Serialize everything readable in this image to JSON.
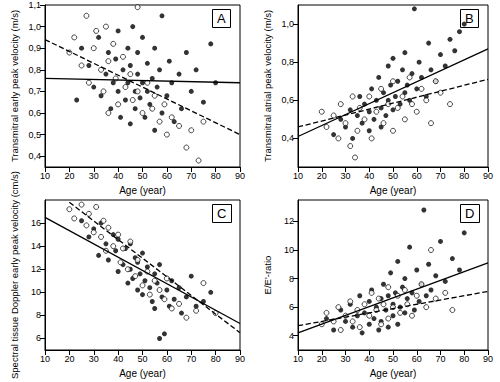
{
  "chart_data": [
    {
      "type": "scatter",
      "title": "A",
      "x_label": "Age (year)",
      "y_label": "Transmitral early peak velocity (m/s)",
      "xlim": [
        10,
        90
      ],
      "xticks": [
        10,
        20,
        30,
        40,
        50,
        60,
        70,
        80,
        90
      ],
      "ylim": [
        0.35,
        1.1
      ],
      "yticks": [
        {
          "value": 0.4,
          "label": "0,4"
        },
        {
          "value": 0.5,
          "label": "0,5"
        },
        {
          "value": 0.6,
          "label": "0,6"
        },
        {
          "value": 0.7,
          "label": "0,7"
        },
        {
          "value": 0.8,
          "label": "0,8"
        },
        {
          "value": 0.9,
          "label": "0,9"
        },
        {
          "value": 1.0,
          "label": "1,0"
        },
        {
          "value": 1.1,
          "label": "1,1"
        }
      ],
      "grid": false,
      "series": [
        {
          "type": "scatter",
          "marker": "filled",
          "color": "#000000",
          "x": [
            28,
            30,
            32,
            33,
            35,
            36,
            37,
            38,
            39,
            40,
            40,
            41,
            42,
            43,
            44,
            44,
            45,
            45,
            46,
            47,
            47,
            48,
            48,
            49,
            50,
            50,
            51,
            52,
            52,
            53,
            54,
            55,
            55,
            56,
            57,
            58,
            58,
            60,
            61,
            62,
            63,
            65,
            66,
            68,
            70,
            72,
            75,
            78,
            80,
            23,
            25
          ],
          "values": [
            0.82,
            0.72,
            0.95,
            0.68,
            0.78,
            0.88,
            0.62,
            0.74,
            0.85,
            0.7,
            0.98,
            0.58,
            0.8,
            0.66,
            0.9,
            0.74,
            0.55,
            0.82,
            1.0,
            0.7,
            0.62,
            0.78,
            0.88,
            0.67,
            0.74,
            0.95,
            0.58,
            0.83,
            0.7,
            0.64,
            0.76,
            0.9,
            0.52,
            0.72,
            0.8,
            0.6,
            1.05,
            0.68,
            0.84,
            0.74,
            0.56,
            0.78,
            0.62,
            0.88,
            0.7,
            0.8,
            0.65,
            0.92,
            0.74,
            0.66,
            0.9
          ]
        },
        {
          "type": "scatter",
          "marker": "open",
          "color": "#000000",
          "x": [
            20,
            22,
            25,
            27,
            28,
            30,
            31,
            33,
            34,
            35,
            36,
            38,
            39,
            40,
            42,
            43,
            45,
            46,
            48,
            50,
            52,
            54,
            55,
            57,
            59,
            60,
            62,
            65,
            68,
            70,
            73,
            75,
            48,
            36
          ],
          "values": [
            0.88,
            0.95,
            0.82,
            1.05,
            0.74,
            0.9,
            0.98,
            0.8,
            0.7,
            1.0,
            0.84,
            0.92,
            0.76,
            0.64,
            0.86,
            0.72,
            0.78,
            0.66,
            0.7,
            0.6,
            0.74,
            0.62,
            0.68,
            0.56,
            0.64,
            0.5,
            0.58,
            0.54,
            0.44,
            0.52,
            0.38,
            0.56,
            1.09,
            0.6
          ]
        },
        {
          "type": "line",
          "line_style": "solid",
          "color": "#000000",
          "x": [
            10,
            90
          ],
          "values": [
            0.76,
            0.74
          ]
        },
        {
          "type": "line",
          "line_style": "dashed",
          "color": "#000000",
          "x": [
            10,
            90
          ],
          "values": [
            0.94,
            0.5
          ]
        }
      ]
    },
    {
      "type": "scatter",
      "title": "B",
      "x_label": "Age (year)",
      "y_label": "Transmitral atrial peak velocity (m/s)",
      "xlim": [
        10,
        90
      ],
      "xticks": [
        10,
        20,
        30,
        40,
        50,
        60,
        70,
        80,
        90
      ],
      "ylim": [
        0.25,
        1.1
      ],
      "yticks": [
        {
          "value": 0.4,
          "label": "0,4"
        },
        {
          "value": 0.6,
          "label": "0,6"
        },
        {
          "value": 0.8,
          "label": "0,8"
        },
        {
          "value": 1.0,
          "label": "1,0"
        }
      ],
      "grid": false,
      "series": [
        {
          "type": "scatter",
          "marker": "filled",
          "color": "#000000",
          "x": [
            25,
            28,
            30,
            32,
            33,
            35,
            36,
            37,
            38,
            40,
            40,
            41,
            42,
            43,
            44,
            45,
            45,
            46,
            47,
            48,
            48,
            49,
            50,
            50,
            51,
            52,
            53,
            54,
            55,
            55,
            56,
            57,
            58,
            59,
            60,
            61,
            62,
            64,
            65,
            66,
            68,
            70,
            72,
            74,
            76,
            78,
            80
          ],
          "values": [
            0.42,
            0.5,
            0.46,
            0.55,
            0.4,
            0.52,
            0.62,
            0.48,
            0.58,
            0.54,
            0.44,
            0.66,
            0.5,
            0.6,
            0.72,
            0.56,
            0.46,
            0.64,
            0.52,
            0.78,
            0.6,
            0.68,
            0.55,
            0.82,
            0.62,
            0.7,
            0.58,
            0.76,
            0.64,
            0.85,
            0.68,
            0.6,
            0.74,
            1.08,
            0.66,
            0.8,
            0.72,
            0.62,
            0.9,
            0.76,
            0.7,
            0.84,
            0.78,
            0.92,
            0.86,
            0.96,
            1.0
          ]
        },
        {
          "type": "scatter",
          "marker": "open",
          "color": "#000000",
          "x": [
            20,
            22,
            25,
            27,
            28,
            30,
            32,
            33,
            35,
            36,
            38,
            40,
            41,
            43,
            45,
            46,
            48,
            50,
            50,
            52,
            54,
            55,
            57,
            58,
            60,
            62,
            64,
            66,
            68,
            70,
            74,
            34
          ],
          "values": [
            0.54,
            0.46,
            0.52,
            0.4,
            0.58,
            0.48,
            0.36,
            0.62,
            0.44,
            0.56,
            0.5,
            0.62,
            0.4,
            0.54,
            0.66,
            0.48,
            0.58,
            0.7,
            0.44,
            0.56,
            0.62,
            0.5,
            0.72,
            0.58,
            0.54,
            0.66,
            0.6,
            0.48,
            0.7,
            0.64,
            0.58,
            0.3
          ]
        },
        {
          "type": "line",
          "line_style": "solid",
          "color": "#000000",
          "x": [
            10,
            90
          ],
          "values": [
            0.41,
            0.87
          ]
        },
        {
          "type": "line",
          "line_style": "dashed",
          "color": "#000000",
          "x": [
            10,
            90
          ],
          "values": [
            0.46,
            0.71
          ]
        }
      ]
    },
    {
      "type": "scatter",
      "title": "C",
      "x_label": "Age (year)",
      "y_label": "Spectral tissue Doppler early peak velocity (cm/s)",
      "xlim": [
        10,
        90
      ],
      "xticks": [
        10,
        20,
        30,
        40,
        50,
        60,
        70,
        80,
        90
      ],
      "ylim": [
        5,
        18
      ],
      "yticks": [
        6,
        8,
        10,
        12,
        14,
        16
      ],
      "grid": false,
      "series": [
        {
          "type": "scatter",
          "marker": "filled",
          "color": "#000000",
          "x": [
            25,
            28,
            30,
            32,
            33,
            35,
            36,
            38,
            39,
            40,
            40,
            42,
            43,
            44,
            45,
            45,
            46,
            47,
            48,
            48,
            49,
            50,
            50,
            51,
            52,
            53,
            54,
            55,
            55,
            56,
            57,
            58,
            59,
            60,
            61,
            62,
            63,
            65,
            66,
            68,
            70,
            72,
            75,
            78,
            57
          ],
          "values": [
            16.2,
            14.8,
            15.5,
            13.2,
            16.0,
            14.2,
            12.8,
            15.0,
            13.6,
            11.8,
            14.6,
            12.4,
            13.8,
            10.8,
            12.0,
            14.2,
            11.2,
            13.0,
            10.2,
            12.6,
            11.6,
            9.8,
            13.4,
            11.0,
            12.2,
            10.4,
            9.2,
            11.6,
            8.6,
            10.8,
            12.4,
            9.6,
            6.4,
            10.2,
            8.8,
            11.0,
            9.4,
            10.4,
            8.2,
            9.6,
            11.4,
            8.8,
            9.2,
            10.0,
            6.0
          ]
        },
        {
          "type": "scatter",
          "marker": "open",
          "color": "#000000",
          "x": [
            20,
            22,
            25,
            27,
            28,
            30,
            31,
            33,
            34,
            35,
            36,
            38,
            40,
            41,
            42,
            44,
            45,
            47,
            48,
            50,
            52,
            53,
            55,
            57,
            59,
            60,
            62,
            65,
            68,
            72,
            75,
            80
          ],
          "values": [
            17.2,
            16.4,
            17.6,
            15.8,
            16.8,
            15.2,
            17.4,
            14.8,
            16.2,
            13.6,
            15.6,
            14.0,
            15.0,
            12.6,
            13.8,
            12.0,
            14.4,
            11.4,
            12.8,
            10.6,
            11.8,
            9.8,
            11.0,
            10.2,
            9.4,
            11.2,
            8.6,
            9.0,
            7.8,
            8.4,
            10.8,
            8.2
          ]
        },
        {
          "type": "line",
          "line_style": "solid",
          "color": "#000000",
          "x": [
            10,
            90
          ],
          "values": [
            16.5,
            7.3
          ]
        },
        {
          "type": "line",
          "line_style": "dashed",
          "color": "#000000",
          "x": [
            20,
            90
          ],
          "values": [
            17.8,
            6.5
          ]
        }
      ]
    },
    {
      "type": "scatter",
      "title": "D",
      "x_label": "Age (year)",
      "y_label": "E/E'-ratio",
      "xlim": [
        10,
        90
      ],
      "xticks": [
        10,
        20,
        30,
        40,
        50,
        60,
        70,
        80,
        90
      ],
      "ylim": [
        3,
        13.5
      ],
      "yticks": [
        4,
        6,
        8,
        10,
        12
      ],
      "grid": false,
      "series": [
        {
          "type": "scatter",
          "marker": "filled",
          "color": "#000000",
          "x": [
            22,
            25,
            28,
            30,
            32,
            33,
            35,
            36,
            37,
            38,
            40,
            40,
            41,
            42,
            43,
            44,
            45,
            45,
            46,
            47,
            48,
            48,
            49,
            50,
            50,
            51,
            52,
            52,
            53,
            54,
            55,
            55,
            56,
            57,
            58,
            59,
            60,
            61,
            62,
            63,
            64,
            65,
            66,
            68,
            70,
            72,
            75,
            78,
            80
          ],
          "values": [
            5.2,
            4.4,
            5.8,
            5.0,
            6.2,
            4.6,
            5.4,
            6.8,
            4.2,
            5.6,
            6.4,
            4.8,
            7.2,
            5.2,
            6.0,
            4.4,
            6.6,
            5.0,
            7.6,
            5.8,
            4.6,
            6.8,
            8.4,
            5.4,
            6.2,
            7.0,
            4.8,
            9.2,
            6.0,
            7.4,
            5.6,
            8.0,
            6.6,
            10.2,
            7.0,
            5.8,
            8.6,
            6.4,
            7.6,
            12.8,
            6.8,
            9.0,
            7.2,
            8.2,
            10.6,
            7.8,
            9.4,
            8.6,
            11.2
          ]
        },
        {
          "type": "scatter",
          "marker": "open",
          "color": "#000000",
          "x": [
            20,
            22,
            25,
            27,
            28,
            30,
            32,
            33,
            35,
            36,
            38,
            40,
            41,
            43,
            44,
            45,
            46,
            48,
            48,
            50,
            52,
            53,
            55,
            56,
            58,
            60,
            62,
            64,
            66,
            68,
            72,
            75
          ],
          "values": [
            4.8,
            5.6,
            5.0,
            6.0,
            4.4,
            5.4,
            6.4,
            5.0,
            5.8,
            4.6,
            6.2,
            5.4,
            7.0,
            5.8,
            6.6,
            4.8,
            6.2,
            7.4,
            5.2,
            6.0,
            6.8,
            5.6,
            7.2,
            6.2,
            5.4,
            6.8,
            7.6,
            6.0,
            10.0,
            6.6,
            7.0,
            5.8
          ]
        },
        {
          "type": "line",
          "line_style": "solid",
          "color": "#000000",
          "x": [
            10,
            90
          ],
          "values": [
            4.2,
            9.1
          ]
        },
        {
          "type": "line",
          "line_style": "dashed",
          "color": "#000000",
          "x": [
            10,
            90
          ],
          "values": [
            4.7,
            7.1
          ]
        }
      ]
    }
  ]
}
